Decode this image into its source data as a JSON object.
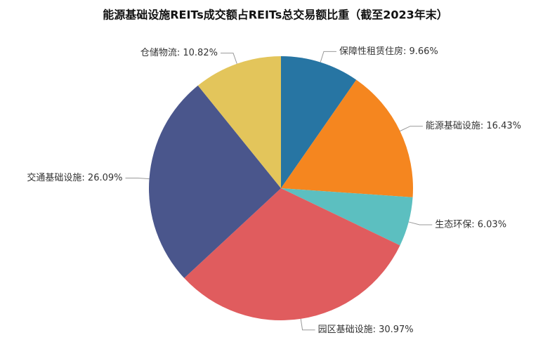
{
  "chart_data": {
    "type": "pie",
    "title": "能源基础设施REITs成交额占REITs总交易额比重（截至2023年末）",
    "labels": [
      "保障性租赁住房: 9.66%",
      "能源基础设施: 16.43%",
      "生态环保: 6.03%",
      "园区基础设施: 30.97%",
      "交通基础设施: 26.09%",
      "仓储物流: 10.82%"
    ],
    "values": [
      9.66,
      16.43,
      6.03,
      30.97,
      26.09,
      10.82
    ],
    "colors": [
      "#2775a3",
      "#f5861f",
      "#5cbfc0",
      "#e05c5e",
      "#4a568c",
      "#e3c55b"
    ]
  }
}
